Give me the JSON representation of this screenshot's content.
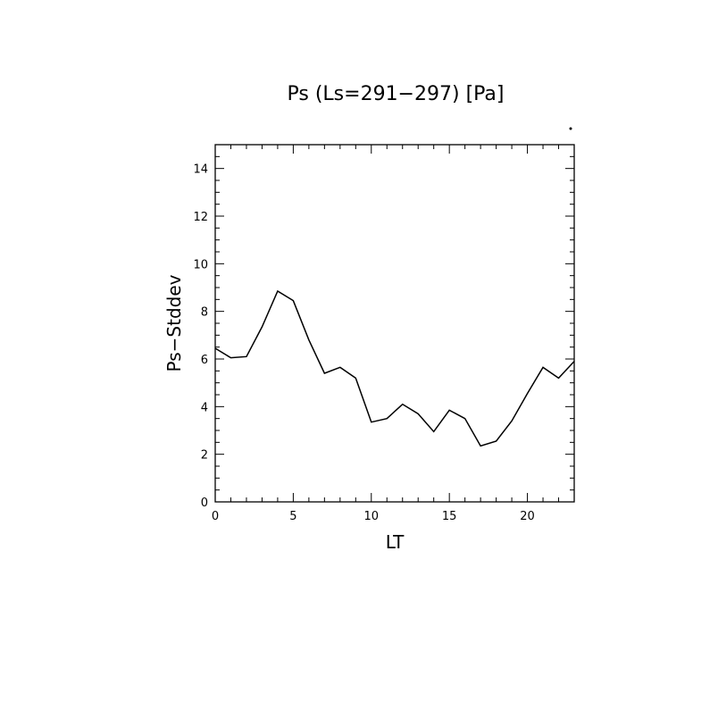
{
  "chart_data": {
    "type": "line",
    "title": "Ps (Ls=291−297) [Pa]",
    "xlabel": "LT",
    "ylabel": "Ps−Stddev",
    "xlim": [
      0,
      23
    ],
    "ylim": [
      0,
      15
    ],
    "x_ticks": [
      0,
      5,
      10,
      15,
      20
    ],
    "x_tick_labels": [
      "0",
      "5",
      "10",
      "15",
      "20"
    ],
    "y_ticks": [
      0,
      2,
      4,
      6,
      8,
      10,
      12,
      14
    ],
    "y_tick_labels": [
      "0",
      "2",
      "4",
      "6",
      "8",
      "10",
      "12",
      "14"
    ],
    "grid": false,
    "line_color": "#000000",
    "series": [
      {
        "x": [
          0,
          1,
          2,
          3,
          4,
          5,
          6,
          7,
          8,
          9,
          10,
          11,
          12,
          13,
          14,
          15,
          16,
          17,
          18,
          19,
          20,
          21,
          22,
          23
        ],
        "values": [
          6.45,
          6.05,
          6.1,
          7.35,
          8.85,
          8.45,
          6.8,
          5.4,
          5.65,
          5.2,
          3.35,
          3.5,
          4.1,
          3.7,
          2.95,
          3.85,
          3.5,
          2.35,
          2.55,
          3.4,
          4.55,
          5.65,
          5.2,
          5.9
        ]
      }
    ]
  }
}
